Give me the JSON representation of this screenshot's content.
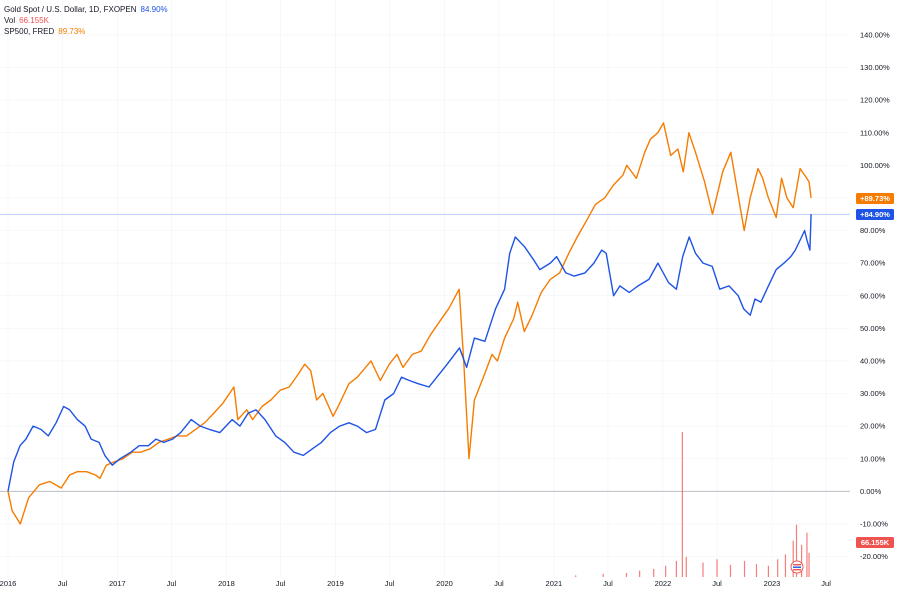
{
  "legend": {
    "gold": {
      "label": "Gold Spot / U.S. Dollar, 1D, FXOPEN",
      "value": "84.90%"
    },
    "vol": {
      "label": "Vol",
      "value": "66.155K"
    },
    "sp500": {
      "label": "SP500, FRED",
      "value": "89.73%"
    }
  },
  "colors": {
    "gold": "#1e53e5",
    "sp500": "#f57c00",
    "vol": "#ef5350",
    "zero_line": "#b2b5be",
    "grid": "#f0f3fa"
  },
  "chart_data": {
    "type": "line",
    "x_tick_labels": [
      "2016",
      "Jul",
      "2017",
      "Jul",
      "2018",
      "Jul",
      "2019",
      "Jul",
      "2020",
      "Jul",
      "2021",
      "Jul",
      "2022",
      "Jul",
      "2023",
      "Jul"
    ],
    "y_tick_labels": [
      "140.00%",
      "130.00%",
      "120.00%",
      "110.00%",
      "100.00%",
      "90.00%",
      "80.00%",
      "70.00%",
      "60.00%",
      "50.00%",
      "40.00%",
      "30.00%",
      "20.00%",
      "10.00%",
      "0.00%",
      "-10.00%",
      "-20.00%"
    ],
    "ylim": [
      -25,
      142
    ],
    "xlim": [
      "2016-01-01",
      "2023-07-31"
    ],
    "grid": true,
    "series": [
      {
        "name": "Gold Spot / U.S. Dollar",
        "color": "#1e53e5",
        "x": [
          "2016-01-01",
          "2016-01-20",
          "2016-02-10",
          "2016-03-01",
          "2016-03-25",
          "2016-04-20",
          "2016-05-15",
          "2016-06-10",
          "2016-07-05",
          "2016-07-25",
          "2016-08-20",
          "2016-09-15",
          "2016-10-05",
          "2016-11-01",
          "2016-11-20",
          "2016-12-15",
          "2017-01-10",
          "2017-02-15",
          "2017-03-15",
          "2017-04-15",
          "2017-05-10",
          "2017-06-05",
          "2017-07-05",
          "2017-08-01",
          "2017-09-05",
          "2017-10-05",
          "2017-11-05",
          "2017-12-10",
          "2018-01-20",
          "2018-02-15",
          "2018-03-15",
          "2018-04-10",
          "2018-05-10",
          "2018-06-15",
          "2018-07-15",
          "2018-08-15",
          "2018-09-15",
          "2018-10-15",
          "2018-11-15",
          "2018-12-15",
          "2019-01-15",
          "2019-02-15",
          "2019-03-15",
          "2019-04-15",
          "2019-05-15",
          "2019-06-15",
          "2019-07-15",
          "2019-08-10",
          "2019-09-05",
          "2019-10-05",
          "2019-11-10",
          "2019-12-15",
          "2020-01-10",
          "2020-02-20",
          "2020-03-15",
          "2020-04-10",
          "2020-05-15",
          "2020-06-20",
          "2020-07-20",
          "2020-08-06",
          "2020-08-25",
          "2020-09-25",
          "2020-10-25",
          "2020-11-15",
          "2020-12-20",
          "2021-01-10",
          "2021-02-10",
          "2021-03-10",
          "2021-04-15",
          "2021-05-15",
          "2021-06-10",
          "2021-06-25",
          "2021-07-20",
          "2021-08-10",
          "2021-09-10",
          "2021-10-10",
          "2021-11-15",
          "2021-12-15",
          "2022-01-20",
          "2022-02-15",
          "2022-03-08",
          "2022-03-30",
          "2022-04-20",
          "2022-05-15",
          "2022-06-15",
          "2022-07-10",
          "2022-08-10",
          "2022-09-10",
          "2022-09-28",
          "2022-10-20",
          "2022-11-05",
          "2022-11-25",
          "2022-12-20",
          "2023-01-15",
          "2023-02-10",
          "2023-03-05",
          "2023-03-20",
          "2023-04-10",
          "2023-04-20",
          "2023-04-28",
          "2023-05-08",
          "2023-05-12"
        ],
        "y": [
          0,
          9,
          14,
          16,
          20,
          19,
          17,
          21,
          26,
          25,
          22,
          20,
          16,
          15,
          11,
          8,
          10,
          12,
          14,
          14,
          16,
          15,
          16,
          18,
          22,
          20,
          19,
          18,
          22,
          20,
          24,
          25,
          22,
          17,
          15,
          12,
          11,
          13,
          15,
          18,
          20,
          21,
          20,
          18,
          19,
          28,
          30,
          35,
          34,
          33,
          32,
          36,
          39,
          44,
          38,
          47,
          46,
          56,
          62,
          73,
          78,
          75,
          71,
          68,
          70,
          72,
          67,
          66,
          67,
          70,
          74,
          73,
          60,
          63,
          61,
          63,
          65,
          70,
          64,
          62,
          72,
          78,
          73,
          70,
          69,
          62,
          63,
          60,
          56,
          54,
          59,
          58,
          63,
          68,
          70,
          72,
          74,
          78,
          80,
          77,
          74,
          85
        ]
      },
      {
        "name": "SP500, FRED",
        "color": "#f57c00",
        "x": [
          "2016-01-01",
          "2016-01-15",
          "2016-02-11",
          "2016-03-10",
          "2016-04-15",
          "2016-05-20",
          "2016-06-27",
          "2016-07-25",
          "2016-08-20",
          "2016-09-20",
          "2016-10-20",
          "2016-11-04",
          "2016-11-25",
          "2016-12-20",
          "2017-01-20",
          "2017-02-20",
          "2017-03-20",
          "2017-04-20",
          "2017-05-20",
          "2017-06-20",
          "2017-07-20",
          "2017-08-20",
          "2017-09-20",
          "2017-10-20",
          "2017-11-20",
          "2017-12-20",
          "2018-01-26",
          "2018-02-08",
          "2018-03-10",
          "2018-03-30",
          "2018-04-30",
          "2018-05-30",
          "2018-06-30",
          "2018-07-30",
          "2018-08-30",
          "2018-09-20",
          "2018-10-10",
          "2018-10-30",
          "2018-11-20",
          "2018-12-24",
          "2019-01-15",
          "2019-02-15",
          "2019-03-15",
          "2019-04-30",
          "2019-05-31",
          "2019-06-30",
          "2019-07-26",
          "2019-08-15",
          "2019-09-15",
          "2019-10-15",
          "2019-11-15",
          "2019-12-15",
          "2020-01-15",
          "2020-02-19",
          "2020-03-05",
          "2020-03-23",
          "2020-04-10",
          "2020-05-10",
          "2020-06-08",
          "2020-06-26",
          "2020-07-20",
          "2020-08-20",
          "2020-09-02",
          "2020-09-24",
          "2020-10-20",
          "2020-11-20",
          "2020-12-20",
          "2021-01-20",
          "2021-02-20",
          "2021-03-20",
          "2021-04-20",
          "2021-05-20",
          "2021-06-20",
          "2021-07-20",
          "2021-08-20",
          "2021-09-02",
          "2021-10-04",
          "2021-11-01",
          "2021-11-20",
          "2021-12-15",
          "2022-01-03",
          "2022-01-27",
          "2022-02-20",
          "2022-03-10",
          "2022-03-29",
          "2022-04-20",
          "2022-05-20",
          "2022-06-16",
          "2022-07-20",
          "2022-08-16",
          "2022-09-15",
          "2022-09-30",
          "2022-10-20",
          "2022-11-15",
          "2022-12-01",
          "2022-12-20",
          "2023-01-15",
          "2023-02-02",
          "2023-02-20",
          "2023-03-13",
          "2023-04-05",
          "2023-04-20",
          "2023-05-05",
          "2023-05-12"
        ],
        "y": [
          0,
          -6,
          -10,
          -2,
          2,
          3,
          1,
          5,
          6,
          6,
          5,
          4,
          8,
          9,
          10,
          12,
          12,
          13,
          15,
          16,
          17,
          17,
          19,
          21,
          24,
          27,
          32,
          22,
          25,
          22,
          26,
          28,
          31,
          32,
          36,
          39,
          37,
          28,
          30,
          23,
          27,
          33,
          35,
          40,
          34,
          39,
          42,
          38,
          42,
          43,
          48,
          52,
          56,
          62,
          40,
          10,
          28,
          35,
          42,
          40,
          47,
          53,
          58,
          49,
          54,
          61,
          65,
          67,
          73,
          78,
          83,
          88,
          90,
          94,
          97,
          100,
          96,
          104,
          108,
          110,
          113,
          103,
          105,
          98,
          110,
          104,
          95,
          85,
          98,
          104,
          88,
          80,
          90,
          99,
          96,
          90,
          84,
          96,
          90,
          87,
          99,
          97,
          95,
          90
        ]
      }
    ],
    "volume_series": {
      "name": "Vol",
      "color": "#ef5350",
      "x": [
        "2021-03-15",
        "2021-06-15",
        "2021-09-01",
        "2021-10-15",
        "2021-12-01",
        "2022-01-10",
        "2022-02-15",
        "2022-03-07",
        "2022-03-20",
        "2022-05-15",
        "2022-07-01",
        "2022-08-15",
        "2022-10-01",
        "2022-11-10",
        "2022-12-20",
        "2023-01-20",
        "2023-02-15",
        "2023-03-13",
        "2023-03-24",
        "2023-04-10",
        "2023-04-28",
        "2023-05-05"
      ],
      "values": [
        2,
        4,
        5,
        8,
        10,
        14,
        20,
        180,
        25,
        18,
        22,
        15,
        20,
        16,
        14,
        22,
        28,
        45,
        65,
        40,
        55,
        30
      ]
    }
  }
}
